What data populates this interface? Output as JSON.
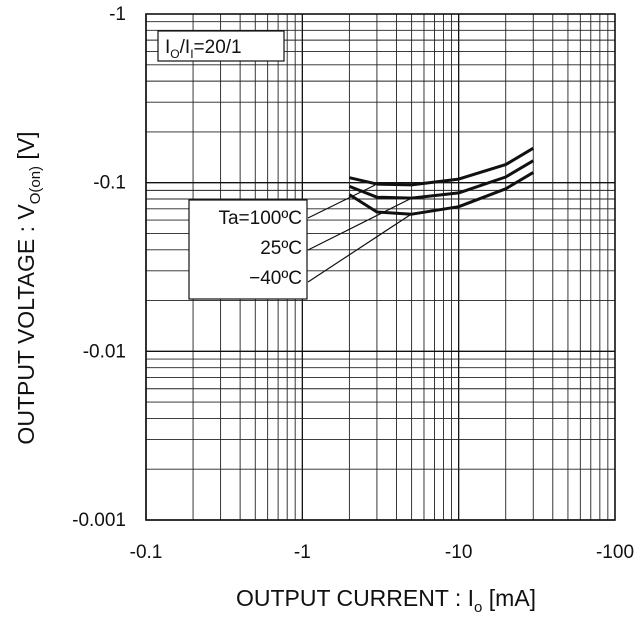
{
  "chart_data": {
    "type": "line",
    "title": "",
    "xlabel": "OUTPUT CURRENT : I",
    "xlabel_sub": "o",
    "xlabel_unit": " [mA]",
    "ylabel": "OUTPUT VOLTAGE : V",
    "ylabel_sub": "O(on)",
    "ylabel_unit": " [V]",
    "x_scale": "log",
    "y_scale": "log",
    "xlim": [
      -0.1,
      -100
    ],
    "ylim": [
      -0.001,
      -1
    ],
    "x_ticks": [
      "-0.1",
      "-1",
      "-10",
      "-100"
    ],
    "y_ticks": [
      "-1",
      "-0.1",
      "-0.01",
      "-0.001"
    ],
    "grid": true,
    "condition": {
      "main": "I",
      "sub1": "O",
      "slash": "/I",
      "sub2": "I",
      "value": "=20/1"
    },
    "series": [
      {
        "name": "Ta=100ºC",
        "x": [
          -2,
          -3,
          -5,
          -10,
          -20,
          -30
        ],
        "y": [
          -0.107,
          -0.098,
          -0.097,
          -0.105,
          -0.128,
          -0.16
        ]
      },
      {
        "name": "25ºC",
        "x": [
          -2,
          -3,
          -5,
          -10,
          -20,
          -30
        ],
        "y": [
          -0.095,
          -0.082,
          -0.081,
          -0.087,
          -0.108,
          -0.135
        ]
      },
      {
        "name": "−40ºC",
        "x": [
          -2,
          -3,
          -5,
          -10,
          -20,
          -30
        ],
        "y": [
          -0.085,
          -0.067,
          -0.065,
          -0.072,
          -0.092,
          -0.115
        ]
      }
    ]
  }
}
